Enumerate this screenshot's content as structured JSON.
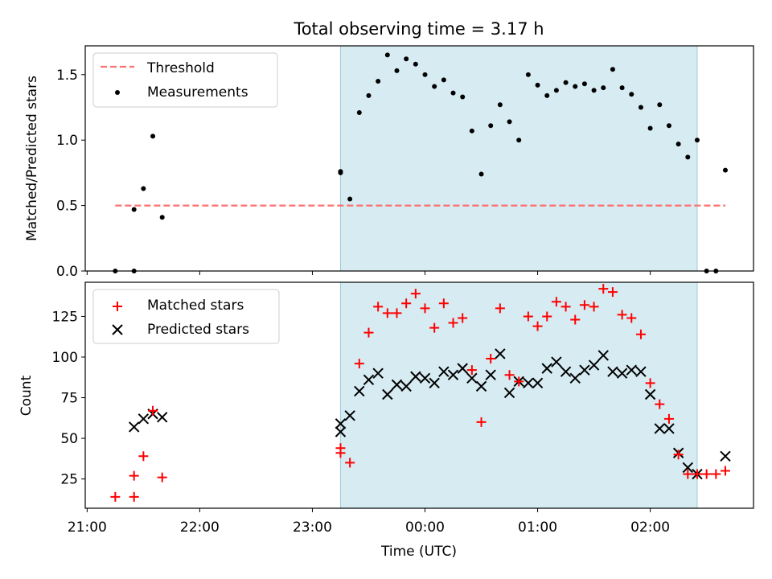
{
  "chart_data": {
    "title": "Total observing time = 3.17 h",
    "xlabel": "Time (UTC)",
    "xlim": [
      "20:59",
      "02:55"
    ],
    "x_ticks": [
      "21:00",
      "22:00",
      "23:00",
      "00:00",
      "01:00",
      "02:00"
    ],
    "observing_window": [
      "23:15",
      "02:25"
    ],
    "colors": {
      "measurements": "#000000",
      "threshold": "#ff7070",
      "matched": "#ff0000",
      "predicted": "#000000",
      "window": "#add8e6"
    },
    "panels": [
      {
        "type": "scatter",
        "ylabel": "Matched/Predicted stars",
        "ylim": [
          0,
          1.72
        ],
        "y_ticks": [
          "0.0",
          "0.5",
          "1.0",
          "1.5"
        ],
        "legend_placement": "upper-left",
        "threshold": {
          "name": "Threshold",
          "value": 0.5,
          "x_range": [
            "21:15",
            "02:40"
          ]
        },
        "series": [
          {
            "name": "Measurements",
            "marker": "dot",
            "points": [
              [
                "21:15",
                0.0
              ],
              [
                "21:25",
                0.0
              ],
              [
                "21:25",
                0.47
              ],
              [
                "21:30",
                0.63
              ],
              [
                "21:35",
                1.03
              ],
              [
                "21:40",
                0.41
              ],
              [
                "23:15",
                0.76
              ],
              [
                "23:15",
                0.75
              ],
              [
                "23:20",
                0.55
              ],
              [
                "23:25",
                1.21
              ],
              [
                "23:30",
                1.34
              ],
              [
                "23:35",
                1.45
              ],
              [
                "23:40",
                1.65
              ],
              [
                "23:45",
                1.53
              ],
              [
                "23:50",
                1.62
              ],
              [
                "23:55",
                1.58
              ],
              [
                "00:00",
                1.5
              ],
              [
                "00:05",
                1.41
              ],
              [
                "00:10",
                1.46
              ],
              [
                "00:15",
                1.36
              ],
              [
                "00:20",
                1.33
              ],
              [
                "00:25",
                1.07
              ],
              [
                "00:30",
                0.74
              ],
              [
                "00:35",
                1.11
              ],
              [
                "00:40",
                1.27
              ],
              [
                "00:45",
                1.14
              ],
              [
                "00:50",
                1.0
              ],
              [
                "00:55",
                1.5
              ],
              [
                "01:00",
                1.42
              ],
              [
                "01:05",
                1.34
              ],
              [
                "01:10",
                1.38
              ],
              [
                "01:15",
                1.44
              ],
              [
                "01:20",
                1.41
              ],
              [
                "01:25",
                1.43
              ],
              [
                "01:30",
                1.38
              ],
              [
                "01:35",
                1.4
              ],
              [
                "01:40",
                1.54
              ],
              [
                "01:45",
                1.4
              ],
              [
                "01:50",
                1.35
              ],
              [
                "01:55",
                1.25
              ],
              [
                "02:00",
                1.09
              ],
              [
                "02:05",
                1.27
              ],
              [
                "02:10",
                1.11
              ],
              [
                "02:15",
                0.97
              ],
              [
                "02:20",
                0.87
              ],
              [
                "02:25",
                1.0
              ],
              [
                "02:30",
                0.0
              ],
              [
                "02:35",
                0.0
              ],
              [
                "02:40",
                0.77
              ]
            ]
          }
        ]
      },
      {
        "type": "scatter",
        "ylabel": "Count",
        "ylim": [
          7,
          146
        ],
        "y_ticks": [
          "25",
          "50",
          "75",
          "100",
          "125"
        ],
        "legend_placement": "upper-left",
        "series": [
          {
            "name": "Matched stars",
            "marker": "plus",
            "points": [
              [
                "21:15",
                14
              ],
              [
                "21:25",
                14
              ],
              [
                "21:25",
                27
              ],
              [
                "21:30",
                39
              ],
              [
                "21:35",
                67
              ],
              [
                "21:40",
                26
              ],
              [
                "23:15",
                44
              ],
              [
                "23:15",
                41
              ],
              [
                "23:20",
                35
              ],
              [
                "23:25",
                96
              ],
              [
                "23:30",
                115
              ],
              [
                "23:35",
                131
              ],
              [
                "23:40",
                127
              ],
              [
                "23:45",
                127
              ],
              [
                "23:50",
                133
              ],
              [
                "23:55",
                139
              ],
              [
                "00:00",
                130
              ],
              [
                "00:05",
                118
              ],
              [
                "00:10",
                133
              ],
              [
                "00:15",
                121
              ],
              [
                "00:20",
                124
              ],
              [
                "00:25",
                92
              ],
              [
                "00:30",
                60
              ],
              [
                "00:35",
                99
              ],
              [
                "00:40",
                130
              ],
              [
                "00:45",
                89
              ],
              [
                "00:50",
                85
              ],
              [
                "00:55",
                125
              ],
              [
                "01:00",
                119
              ],
              [
                "01:05",
                125
              ],
              [
                "01:10",
                134
              ],
              [
                "01:15",
                131
              ],
              [
                "01:20",
                123
              ],
              [
                "01:25",
                132
              ],
              [
                "01:30",
                131
              ],
              [
                "01:35",
                142
              ],
              [
                "01:40",
                140
              ],
              [
                "01:45",
                126
              ],
              [
                "01:50",
                124
              ],
              [
                "01:55",
                114
              ],
              [
                "02:00",
                84
              ],
              [
                "02:05",
                71
              ],
              [
                "02:10",
                62
              ],
              [
                "02:15",
                40
              ],
              [
                "02:20",
                28
              ],
              [
                "02:25",
                28
              ],
              [
                "02:30",
                28
              ],
              [
                "02:35",
                28
              ],
              [
                "02:40",
                30
              ]
            ]
          },
          {
            "name": "Predicted stars",
            "marker": "x",
            "points": [
              [
                "21:25",
                57
              ],
              [
                "21:30",
                62
              ],
              [
                "21:35",
                65
              ],
              [
                "21:40",
                63
              ],
              [
                "23:15",
                59
              ],
              [
                "23:15",
                54
              ],
              [
                "23:20",
                64
              ],
              [
                "23:25",
                79
              ],
              [
                "23:30",
                86
              ],
              [
                "23:35",
                90
              ],
              [
                "23:40",
                77
              ],
              [
                "23:45",
                83
              ],
              [
                "23:50",
                82
              ],
              [
                "23:55",
                88
              ],
              [
                "00:00",
                87
              ],
              [
                "00:05",
                84
              ],
              [
                "00:10",
                91
              ],
              [
                "00:15",
                89
              ],
              [
                "00:20",
                93
              ],
              [
                "00:25",
                87
              ],
              [
                "00:30",
                82
              ],
              [
                "00:35",
                89
              ],
              [
                "00:40",
                102
              ],
              [
                "00:45",
                78
              ],
              [
                "00:50",
                85
              ],
              [
                "00:55",
                84
              ],
              [
                "01:00",
                84
              ],
              [
                "01:05",
                93
              ],
              [
                "01:10",
                97
              ],
              [
                "01:15",
                91
              ],
              [
                "01:20",
                87
              ],
              [
                "01:25",
                92
              ],
              [
                "01:30",
                95
              ],
              [
                "01:35",
                101
              ],
              [
                "01:40",
                91
              ],
              [
                "01:45",
                90
              ],
              [
                "01:50",
                92
              ],
              [
                "01:55",
                91
              ],
              [
                "02:00",
                77
              ],
              [
                "02:05",
                56
              ],
              [
                "02:10",
                56
              ],
              [
                "02:15",
                41
              ],
              [
                "02:20",
                32
              ],
              [
                "02:25",
                28
              ],
              [
                "02:40",
                39
              ]
            ]
          }
        ]
      }
    ]
  }
}
